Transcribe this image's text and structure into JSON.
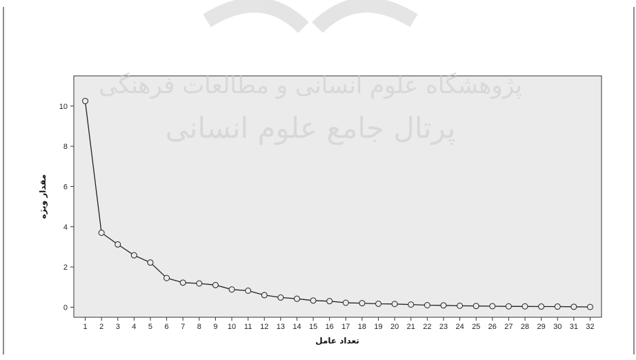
{
  "chart_data": {
    "type": "line",
    "title": "",
    "xlabel": "تعداد عامل",
    "ylabel": "مقدار ویژه",
    "x": [
      1,
      2,
      3,
      4,
      5,
      6,
      7,
      8,
      9,
      10,
      11,
      12,
      13,
      14,
      15,
      16,
      17,
      18,
      19,
      20,
      21,
      22,
      23,
      24,
      25,
      26,
      27,
      28,
      29,
      30,
      31,
      32
    ],
    "series": [
      {
        "values": [
          10.25,
          3.7,
          3.12,
          2.58,
          2.22,
          1.45,
          1.22,
          1.18,
          1.1,
          0.88,
          0.82,
          0.6,
          0.48,
          0.42,
          0.33,
          0.3,
          0.22,
          0.2,
          0.17,
          0.16,
          0.13,
          0.1,
          0.09,
          0.07,
          0.06,
          0.05,
          0.04,
          0.04,
          0.03,
          0.03,
          0.02,
          0.01
        ]
      }
    ],
    "xlim": [
      0.3,
      32.7
    ],
    "ylim": [
      -0.5,
      11.5
    ],
    "yticks": [
      0,
      2,
      4,
      6,
      8,
      10
    ],
    "grid": false,
    "marker": "open-circle",
    "line_color": "#222222",
    "plot_background": "#ebebeb"
  },
  "watermark": {
    "line1": "پژوهشگاه علوم انسانی و مطالعات فرهنگی",
    "line2": "پرتال جامع علوم انسانی"
  }
}
